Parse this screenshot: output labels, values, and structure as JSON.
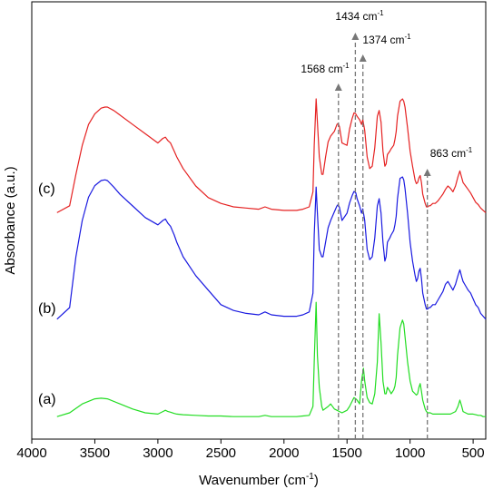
{
  "chart_data": {
    "type": "line",
    "xlabel": "Wavenumber (cm-1)",
    "xlabel_main": "Wavenumber (cm",
    "xlabel_sup": "-1",
    "xlabel_end": ")",
    "ylabel": "Absorbance (a.u.)",
    "xlim": [
      4000,
      400
    ],
    "x_reversed": true,
    "x_ticks": [
      4000,
      3500,
      3000,
      2500,
      2000,
      1500,
      1000,
      500
    ],
    "x_tick_labels": [
      "4000",
      "3500",
      "3000",
      "2500",
      "2000",
      "1500",
      "1000",
      "500"
    ],
    "y_ticks_shown": false,
    "grid": false,
    "series": [
      {
        "name": "(a)",
        "color": "#22dd22",
        "x": [
          3800,
          3700,
          3600,
          3500,
          3450,
          3400,
          3300,
          3200,
          3100,
          3000,
          2960,
          2940,
          2920,
          2900,
          2870,
          2850,
          2800,
          2700,
          2600,
          2500,
          2400,
          2300,
          2200,
          2150,
          2100,
          2000,
          1900,
          1850,
          1800,
          1770,
          1760,
          1745,
          1735,
          1720,
          1700,
          1690,
          1650,
          1630,
          1600,
          1580,
          1560,
          1540,
          1500,
          1480,
          1460,
          1445,
          1430,
          1420,
          1400,
          1385,
          1370,
          1360,
          1340,
          1320,
          1300,
          1280,
          1260,
          1245,
          1230,
          1215,
          1200,
          1190,
          1180,
          1160,
          1150,
          1130,
          1120,
          1110,
          1100,
          1080,
          1060,
          1050,
          1040,
          1020,
          1000,
          980,
          960,
          950,
          940,
          930,
          920,
          910,
          900,
          880,
          870,
          860,
          850,
          840,
          820,
          800,
          780,
          760,
          740,
          720,
          700,
          680,
          660,
          640,
          620,
          605,
          590,
          580,
          560,
          540,
          520,
          500,
          480,
          460,
          440,
          420,
          400
        ],
        "y": [
          0.02,
          0.05,
          0.12,
          0.16,
          0.165,
          0.16,
          0.12,
          0.08,
          0.05,
          0.04,
          0.06,
          0.07,
          0.06,
          0.055,
          0.045,
          0.04,
          0.035,
          0.03,
          0.025,
          0.025,
          0.02,
          0.02,
          0.02,
          0.03,
          0.02,
          0.02,
          0.02,
          0.025,
          0.03,
          0.1,
          0.45,
          0.92,
          0.5,
          0.25,
          0.1,
          0.07,
          0.1,
          0.12,
          0.08,
          0.07,
          0.06,
          0.05,
          0.07,
          0.1,
          0.14,
          0.17,
          0.16,
          0.15,
          0.12,
          0.3,
          0.4,
          0.3,
          0.17,
          0.13,
          0.12,
          0.2,
          0.45,
          0.83,
          0.6,
          0.3,
          0.2,
          0.2,
          0.25,
          0.22,
          0.2,
          0.23,
          0.26,
          0.33,
          0.5,
          0.72,
          0.78,
          0.75,
          0.65,
          0.45,
          0.3,
          0.22,
          0.2,
          0.19,
          0.2,
          0.25,
          0.28,
          0.22,
          0.15,
          0.08,
          0.06,
          0.05,
          0.05,
          0.05,
          0.04,
          0.04,
          0.04,
          0.04,
          0.04,
          0.04,
          0.04,
          0.04,
          0.05,
          0.06,
          0.1,
          0.15,
          0.1,
          0.06,
          0.05,
          0.04,
          0.04,
          0.04,
          0.035,
          0.03,
          0.03,
          0.02,
          0.02
        ]
      },
      {
        "name": "(b)",
        "color": "#1a1ae0",
        "x": [
          3800,
          3700,
          3650,
          3600,
          3550,
          3500,
          3450,
          3420,
          3400,
          3350,
          3300,
          3200,
          3100,
          3000,
          2960,
          2940,
          2920,
          2900,
          2870,
          2850,
          2800,
          2700,
          2600,
          2500,
          2400,
          2300,
          2200,
          2150,
          2100,
          2000,
          1900,
          1850,
          1800,
          1770,
          1760,
          1745,
          1735,
          1720,
          1700,
          1690,
          1670,
          1650,
          1630,
          1600,
          1580,
          1570,
          1560,
          1540,
          1500,
          1480,
          1460,
          1445,
          1430,
          1420,
          1400,
          1385,
          1375,
          1360,
          1340,
          1320,
          1300,
          1280,
          1260,
          1245,
          1230,
          1215,
          1200,
          1190,
          1180,
          1160,
          1150,
          1130,
          1120,
          1110,
          1100,
          1080,
          1060,
          1050,
          1040,
          1020,
          1000,
          980,
          960,
          950,
          940,
          930,
          920,
          910,
          900,
          880,
          870,
          860,
          850,
          840,
          820,
          800,
          780,
          760,
          740,
          720,
          700,
          680,
          660,
          640,
          620,
          605,
          590,
          580,
          560,
          540,
          520,
          500,
          480,
          460,
          440,
          420,
          400
        ],
        "y": [
          0.02,
          0.1,
          0.45,
          0.7,
          0.86,
          0.94,
          0.975,
          0.98,
          0.975,
          0.93,
          0.88,
          0.8,
          0.72,
          0.67,
          0.7,
          0.71,
          0.68,
          0.66,
          0.6,
          0.55,
          0.45,
          0.32,
          0.22,
          0.12,
          0.08,
          0.06,
          0.05,
          0.07,
          0.05,
          0.04,
          0.04,
          0.05,
          0.07,
          0.2,
          0.6,
          0.93,
          0.75,
          0.5,
          0.45,
          0.45,
          0.55,
          0.65,
          0.7,
          0.76,
          0.8,
          0.81,
          0.79,
          0.7,
          0.75,
          0.82,
          0.87,
          0.9,
          0.89,
          0.85,
          0.8,
          0.75,
          0.78,
          0.7,
          0.5,
          0.43,
          0.45,
          0.58,
          0.8,
          0.85,
          0.75,
          0.55,
          0.42,
          0.45,
          0.55,
          0.58,
          0.6,
          0.63,
          0.67,
          0.73,
          0.85,
          0.99,
          1.0,
          0.98,
          0.92,
          0.75,
          0.55,
          0.42,
          0.32,
          0.28,
          0.3,
          0.35,
          0.37,
          0.3,
          0.2,
          0.12,
          0.09,
          0.09,
          0.1,
          0.1,
          0.12,
          0.12,
          0.15,
          0.18,
          0.21,
          0.26,
          0.28,
          0.25,
          0.22,
          0.26,
          0.32,
          0.36,
          0.31,
          0.28,
          0.25,
          0.22,
          0.2,
          0.16,
          0.12,
          0.1,
          0.06,
          0.04,
          0.02
        ]
      },
      {
        "name": "(c)",
        "color": "#e52222",
        "x": [
          3800,
          3700,
          3650,
          3600,
          3550,
          3500,
          3450,
          3420,
          3400,
          3350,
          3300,
          3200,
          3100,
          3000,
          2960,
          2940,
          2920,
          2900,
          2870,
          2850,
          2800,
          2700,
          2600,
          2500,
          2400,
          2300,
          2200,
          2150,
          2100,
          2000,
          1900,
          1850,
          1800,
          1770,
          1760,
          1745,
          1735,
          1720,
          1700,
          1690,
          1670,
          1650,
          1630,
          1600,
          1580,
          1570,
          1560,
          1540,
          1500,
          1480,
          1460,
          1445,
          1430,
          1420,
          1400,
          1385,
          1375,
          1360,
          1340,
          1320,
          1300,
          1280,
          1260,
          1245,
          1230,
          1215,
          1200,
          1190,
          1180,
          1160,
          1150,
          1130,
          1120,
          1110,
          1100,
          1080,
          1060,
          1050,
          1040,
          1020,
          1000,
          980,
          960,
          950,
          940,
          930,
          920,
          910,
          900,
          880,
          870,
          860,
          850,
          840,
          820,
          800,
          780,
          760,
          740,
          720,
          700,
          680,
          660,
          640,
          620,
          605,
          590,
          580,
          560,
          540,
          520,
          500,
          480,
          460,
          440,
          420,
          400
        ],
        "y": [
          0.02,
          0.08,
          0.35,
          0.6,
          0.78,
          0.87,
          0.92,
          0.93,
          0.93,
          0.9,
          0.86,
          0.78,
          0.7,
          0.62,
          0.66,
          0.67,
          0.64,
          0.62,
          0.55,
          0.5,
          0.4,
          0.25,
          0.15,
          0.1,
          0.07,
          0.06,
          0.05,
          0.07,
          0.05,
          0.04,
          0.04,
          0.05,
          0.07,
          0.2,
          0.6,
          1.0,
          0.8,
          0.5,
          0.35,
          0.35,
          0.5,
          0.63,
          0.68,
          0.72,
          0.78,
          0.79,
          0.76,
          0.62,
          0.6,
          0.74,
          0.83,
          0.88,
          0.87,
          0.85,
          0.82,
          0.78,
          0.82,
          0.73,
          0.5,
          0.4,
          0.42,
          0.58,
          0.85,
          0.9,
          0.8,
          0.55,
          0.42,
          0.44,
          0.52,
          0.55,
          0.57,
          0.6,
          0.65,
          0.72,
          0.85,
          0.98,
          1.0,
          0.98,
          0.93,
          0.75,
          0.55,
          0.42,
          0.3,
          0.27,
          0.28,
          0.32,
          0.34,
          0.28,
          0.18,
          0.1,
          0.07,
          0.07,
          0.08,
          0.08,
          0.1,
          0.1,
          0.12,
          0.15,
          0.18,
          0.22,
          0.25,
          0.23,
          0.2,
          0.25,
          0.33,
          0.38,
          0.32,
          0.28,
          0.25,
          0.22,
          0.19,
          0.15,
          0.11,
          0.09,
          0.06,
          0.04,
          0.02
        ]
      }
    ],
    "annotations": [
      {
        "label_main": "1568 cm",
        "label_sup": "-1",
        "x": 1568
      },
      {
        "label_main": "1434 cm",
        "label_sup": "-1",
        "x": 1434
      },
      {
        "label_main": "1374 cm",
        "label_sup": "-1",
        "x": 1374
      },
      {
        "label_main": "863 cm",
        "label_sup": "-1",
        "x": 863
      }
    ]
  }
}
